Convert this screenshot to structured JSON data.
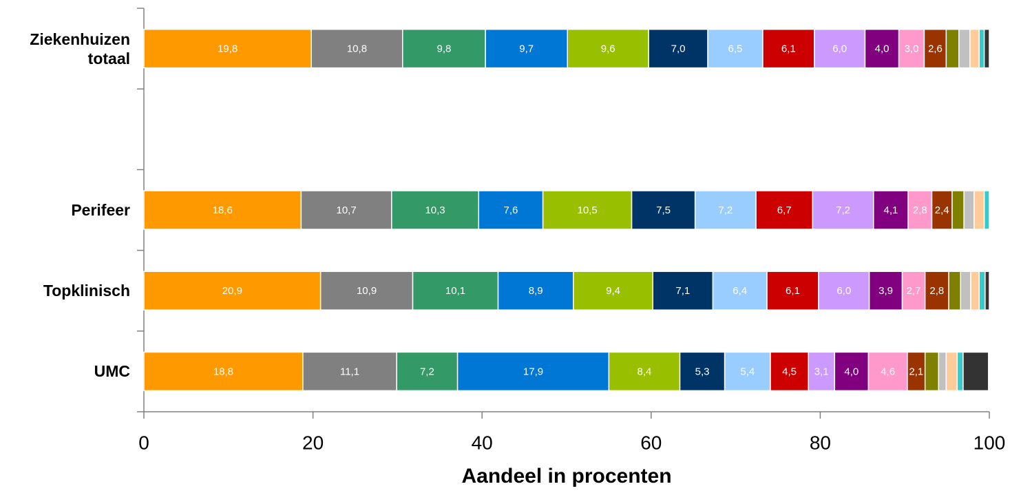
{
  "chart_data": {
    "type": "stacked-barh",
    "x_label": "Aandeel in procenten",
    "categories": [
      "Ziekenhuizen totaal",
      null,
      "Perifeer",
      "Topklinisch",
      "UMC"
    ],
    "xlim": [
      0,
      100
    ],
    "xticks": [
      0,
      20,
      40,
      60,
      80,
      100
    ],
    "series": [
      {
        "color": "#FF9900",
        "values": [
          19.8,
          null,
          18.6,
          20.9,
          18.8
        ],
        "value_labels": [
          "19,8",
          null,
          "18,6",
          "20,9",
          "18,8"
        ]
      },
      {
        "color": "#808080",
        "values": [
          10.8,
          null,
          10.7,
          10.9,
          11.1
        ],
        "value_labels": [
          "10,8",
          null,
          "10,7",
          "10,9",
          "11,1"
        ]
      },
      {
        "color": "#339966",
        "values": [
          9.8,
          null,
          10.3,
          10.1,
          7.2
        ],
        "value_labels": [
          "9,8",
          null,
          "10,3",
          "10,1",
          "7,2"
        ]
      },
      {
        "color": "#0077D5",
        "values": [
          9.7,
          null,
          7.6,
          8.9,
          17.9
        ],
        "value_labels": [
          "9,7",
          null,
          "7,6",
          "8,9",
          "17,9"
        ]
      },
      {
        "color": "#99C000",
        "values": [
          9.6,
          null,
          10.5,
          9.4,
          8.4
        ],
        "value_labels": [
          "9,6",
          null,
          "10,5",
          "9,4",
          "8,4"
        ]
      },
      {
        "color": "#003366",
        "values": [
          7.0,
          null,
          7.5,
          7.1,
          5.3
        ],
        "value_labels": [
          "7,0",
          null,
          "7,5",
          "7,1",
          "5,3"
        ]
      },
      {
        "color": "#99CCFF",
        "values": [
          6.5,
          null,
          7.2,
          6.4,
          5.4
        ],
        "value_labels": [
          "6,5",
          null,
          "7,2",
          "6,4",
          "5,4"
        ]
      },
      {
        "color": "#CC0000",
        "values": [
          6.1,
          null,
          6.7,
          6.1,
          4.5
        ],
        "value_labels": [
          "6,1",
          null,
          "6,7",
          "6,1",
          "4,5"
        ]
      },
      {
        "color": "#CC99FF",
        "values": [
          6.0,
          null,
          7.2,
          6.0,
          3.1
        ],
        "value_labels": [
          "6,0",
          null,
          "7,2",
          "6,0",
          "3,1"
        ]
      },
      {
        "color": "#800080",
        "values": [
          4.0,
          null,
          4.1,
          3.9,
          4.0
        ],
        "value_labels": [
          "4,0",
          null,
          "4,1",
          "3,9",
          "4,0"
        ]
      },
      {
        "color": "#FF99CC",
        "values": [
          3.0,
          null,
          2.8,
          2.7,
          4.6
        ],
        "value_labels": [
          "3,0",
          null,
          "2,8",
          "2,7",
          "4,6"
        ]
      },
      {
        "color": "#993300",
        "values": [
          2.6,
          null,
          2.4,
          2.8,
          2.1
        ],
        "value_labels": [
          "2,6",
          null,
          "2,4",
          "2,8",
          "2,1"
        ]
      },
      {
        "color": "#808000",
        "values": [
          1.5,
          null,
          1.4,
          1.4,
          1.6
        ]
      },
      {
        "color": "#C0C0C0",
        "values": [
          1.3,
          null,
          1.2,
          1.2,
          0.9
        ]
      },
      {
        "color": "#FFCC99",
        "values": [
          1.1,
          null,
          1.2,
          1.0,
          1.3
        ]
      },
      {
        "color": "#33CCCC",
        "values": [
          0.6,
          null,
          0.6,
          0.7,
          0.7
        ]
      },
      {
        "color": "#333333",
        "values": [
          0.6,
          null,
          0,
          0.5,
          3.0
        ]
      }
    ]
  }
}
